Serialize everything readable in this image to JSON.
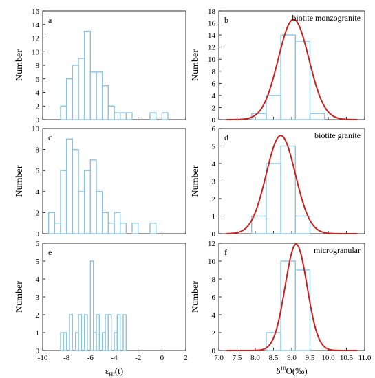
{
  "chart_data": [
    {
      "id": "a",
      "type": "bar",
      "panel_label": "a",
      "annotation": "",
      "ylabel": "Number",
      "xlabel": "",
      "xlim": [
        -10,
        2
      ],
      "ylim": [
        0,
        16
      ],
      "xticks": [],
      "yticks": [
        "0",
        "2",
        "4",
        "6",
        "8",
        "10",
        "12",
        "14",
        "16"
      ],
      "bin_width": 0.5,
      "bins": [
        {
          "x": -8.5,
          "value": 2
        },
        {
          "x": -8.0,
          "value": 6
        },
        {
          "x": -7.5,
          "value": 8
        },
        {
          "x": -7.0,
          "value": 9
        },
        {
          "x": -6.5,
          "value": 13
        },
        {
          "x": -6.0,
          "value": 7
        },
        {
          "x": -5.5,
          "value": 7
        },
        {
          "x": -5.0,
          "value": 5
        },
        {
          "x": -4.5,
          "value": 2
        },
        {
          "x": -4.0,
          "value": 1
        },
        {
          "x": -3.5,
          "value": 1
        },
        {
          "x": -3.0,
          "value": 1
        },
        {
          "x": -1.0,
          "value": 1
        },
        {
          "x": 0.0,
          "value": 1
        }
      ],
      "bar_color": "#8ac4e0"
    },
    {
      "id": "b",
      "type": "bar",
      "panel_label": "b",
      "annotation": "biotite monzogranite",
      "ylabel": "Number",
      "xlabel": "",
      "xlim": [
        7.0,
        11.0
      ],
      "ylim": [
        0,
        18
      ],
      "xticks": [],
      "yticks": [
        "0",
        "2",
        "4",
        "6",
        "8",
        "10",
        "12",
        "14",
        "16",
        "18"
      ],
      "bin_width": 0.4,
      "bins": [
        {
          "x": 7.9,
          "value": 1
        },
        {
          "x": 8.3,
          "value": 4
        },
        {
          "x": 8.7,
          "value": 14
        },
        {
          "x": 9.1,
          "value": 13
        },
        {
          "x": 9.5,
          "value": 1
        }
      ],
      "curve": {
        "type": "normal",
        "mean": 9.05,
        "sd": 0.42,
        "peak": 16.6
      },
      "bar_color": "#8ac4e0",
      "curve_color": "#cc1f1f"
    },
    {
      "id": "c",
      "type": "bar",
      "panel_label": "c",
      "annotation": "",
      "ylabel": "Number",
      "xlabel": "",
      "xlim": [
        -10,
        2
      ],
      "ylim": [
        0,
        10
      ],
      "xticks": [],
      "yticks": [
        "0",
        "2",
        "4",
        "6",
        "8",
        "10"
      ],
      "bin_width": 0.5,
      "bins": [
        {
          "x": -9.5,
          "value": 2
        },
        {
          "x": -9.0,
          "value": 1
        },
        {
          "x": -8.5,
          "value": 6
        },
        {
          "x": -8.0,
          "value": 9
        },
        {
          "x": -7.5,
          "value": 8
        },
        {
          "x": -7.0,
          "value": 4
        },
        {
          "x": -6.5,
          "value": 6
        },
        {
          "x": -6.0,
          "value": 7
        },
        {
          "x": -5.5,
          "value": 4
        },
        {
          "x": -5.0,
          "value": 2
        },
        {
          "x": -4.5,
          "value": 1
        },
        {
          "x": -4.0,
          "value": 2
        },
        {
          "x": -3.5,
          "value": 1
        },
        {
          "x": -2.5,
          "value": 1
        },
        {
          "x": -1.0,
          "value": 1
        }
      ],
      "bar_color": "#8ac4e0"
    },
    {
      "id": "d",
      "type": "bar",
      "panel_label": "d",
      "annotation": "biotite granite",
      "ylabel": "Number",
      "xlabel": "",
      "xlim": [
        7.0,
        11.0
      ],
      "ylim": [
        0,
        6
      ],
      "xticks": [],
      "yticks": [
        "0",
        "1",
        "2",
        "3",
        "4",
        "5",
        "6"
      ],
      "bin_width": 0.4,
      "bins": [
        {
          "x": 7.9,
          "value": 1
        },
        {
          "x": 8.3,
          "value": 4
        },
        {
          "x": 8.7,
          "value": 5
        },
        {
          "x": 9.1,
          "value": 1
        }
      ],
      "curve": {
        "type": "normal",
        "mean": 8.7,
        "sd": 0.4,
        "peak": 5.6
      },
      "bar_color": "#8ac4e0",
      "curve_color": "#cc1f1f"
    },
    {
      "id": "e",
      "type": "bar",
      "panel_label": "e",
      "annotation": "",
      "ylabel": "Number",
      "xlabel": "ε Hf (t)",
      "xlim": [
        -10,
        2
      ],
      "ylim": [
        0,
        6
      ],
      "xticks": [
        "-10",
        "-8",
        "-6",
        "-4",
        "-2",
        "0",
        "2"
      ],
      "yticks": [
        "0",
        "1",
        "2",
        "3",
        "4",
        "5",
        "6"
      ],
      "bin_width": 0.25,
      "bins": [
        {
          "x": -8.5,
          "value": 1
        },
        {
          "x": -8.25,
          "value": 1
        },
        {
          "x": -7.75,
          "value": 2
        },
        {
          "x": -7.25,
          "value": 1
        },
        {
          "x": -7.0,
          "value": 2
        },
        {
          "x": -6.5,
          "value": 2
        },
        {
          "x": -6.0,
          "value": 5
        },
        {
          "x": -5.75,
          "value": 1
        },
        {
          "x": -5.5,
          "value": 2
        },
        {
          "x": -5.0,
          "value": 1
        },
        {
          "x": -4.75,
          "value": 2
        },
        {
          "x": -4.5,
          "value": 2
        },
        {
          "x": -4.0,
          "value": 1
        },
        {
          "x": -3.75,
          "value": 2
        },
        {
          "x": -3.25,
          "value": 2
        }
      ],
      "bar_color": "#8ac4e0"
    },
    {
      "id": "f",
      "type": "bar",
      "panel_label": "f",
      "annotation": "microgranular",
      "ylabel": "Number",
      "xlabel": "δ 18 O(‰)",
      "xlim": [
        7.0,
        11.0
      ],
      "ylim": [
        0,
        12
      ],
      "xticks": [
        "7.0",
        "7.5",
        "8.0",
        "8.5",
        "9.0",
        "9.5",
        "10.0",
        "10.5",
        "11.0"
      ],
      "yticks": [
        "0",
        "2",
        "4",
        "6",
        "8",
        "10",
        "12"
      ],
      "bin_width": 0.4,
      "bins": [
        {
          "x": 8.3,
          "value": 2
        },
        {
          "x": 8.7,
          "value": 10
        },
        {
          "x": 9.1,
          "value": 9
        }
      ],
      "curve": {
        "type": "normal",
        "mean": 9.12,
        "sd": 0.3,
        "peak": 11.9
      },
      "bar_color": "#8ac4e0",
      "curve_color": "#cc1f1f"
    }
  ]
}
